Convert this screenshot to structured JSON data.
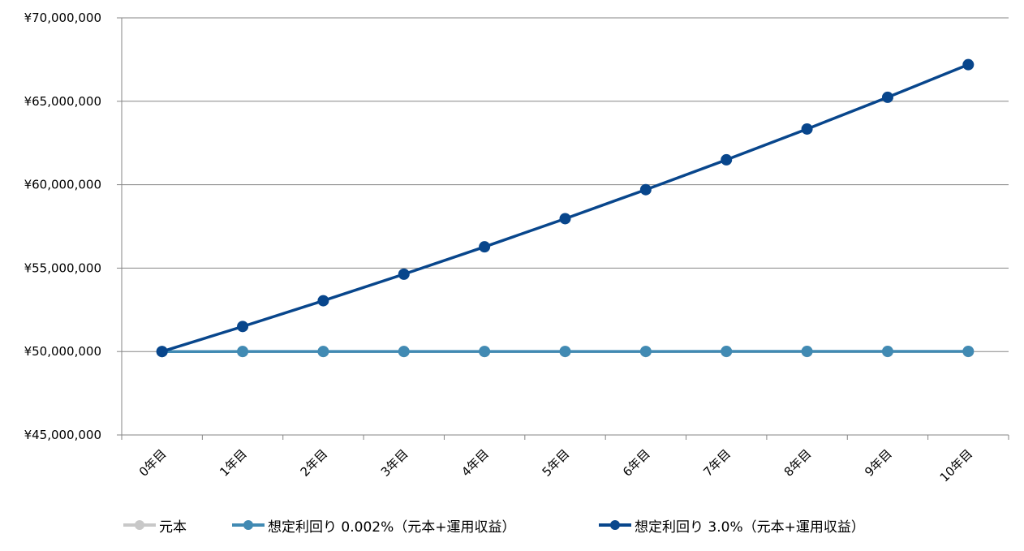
{
  "chart_data": {
    "type": "line",
    "categories": [
      "0年目",
      "1年目",
      "2年目",
      "3年目",
      "4年目",
      "5年目",
      "6年目",
      "7年目",
      "8年目",
      "9年目",
      "10年目"
    ],
    "ylim": [
      45000000,
      70000000
    ],
    "yticks": [
      45000000,
      50000000,
      55000000,
      60000000,
      65000000,
      70000000
    ],
    "ytick_labels": [
      "¥45,000,000",
      "¥50,000,000",
      "¥55,000,000",
      "¥60,000,000",
      "¥65,000,000",
      "¥70,000,000"
    ],
    "grid": true,
    "legend_position": "bottom",
    "series": [
      {
        "name": "元本",
        "color": "#c8c8c8",
        "values": [
          50000000,
          50000000,
          50000000,
          50000000,
          50000000,
          50000000,
          50000000,
          50000000,
          50000000,
          50000000,
          50000000
        ]
      },
      {
        "name": "想定利回り 0.002%（元本+運用収益）",
        "color": "#418ab3",
        "values": [
          50000000,
          50001000,
          50002000,
          50003000,
          50004000,
          50005000,
          50006000,
          50007000,
          50008000,
          50009000,
          50010000
        ]
      },
      {
        "name": "想定利回り 3.0%（元本+運用収益）",
        "color": "#08468c",
        "values": [
          50000000,
          51500000,
          53045000,
          54636350,
          56275441,
          57963704,
          59702615,
          61493693,
          63338504,
          65238659,
          67195819
        ]
      }
    ]
  }
}
